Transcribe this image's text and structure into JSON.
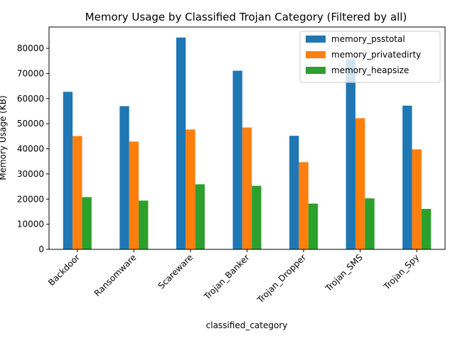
{
  "chart_data": {
    "type": "bar",
    "title": "Memory Usage by Classified Trojan Category (Filtered by all)",
    "xlabel": "classified_category",
    "ylabel": "Memory Usage (KB)",
    "categories": [
      "Backdoor",
      "Ransomware",
      "Scareware",
      "Trojan_Banker",
      "Trojan_Dropper",
      "Trojan_SMS",
      "Trojan_Spy"
    ],
    "series": [
      {
        "name": "memory_psstotal",
        "color": "#1f77b4",
        "values": [
          62700,
          57000,
          84300,
          71100,
          45200,
          75700,
          57200
        ]
      },
      {
        "name": "memory_privatedirty",
        "color": "#ff7f0e",
        "values": [
          45100,
          42900,
          47700,
          48500,
          34700,
          52200,
          39800
        ]
      },
      {
        "name": "memory_heapsize",
        "color": "#2ca02c",
        "values": [
          20800,
          19400,
          25900,
          25300,
          18200,
          20300,
          16100
        ]
      }
    ],
    "ylim": [
      0,
      88500
    ],
    "yticks": [
      0,
      10000,
      20000,
      30000,
      40000,
      50000,
      60000,
      70000,
      80000
    ],
    "legend_position": "top-right",
    "grid": false
  }
}
